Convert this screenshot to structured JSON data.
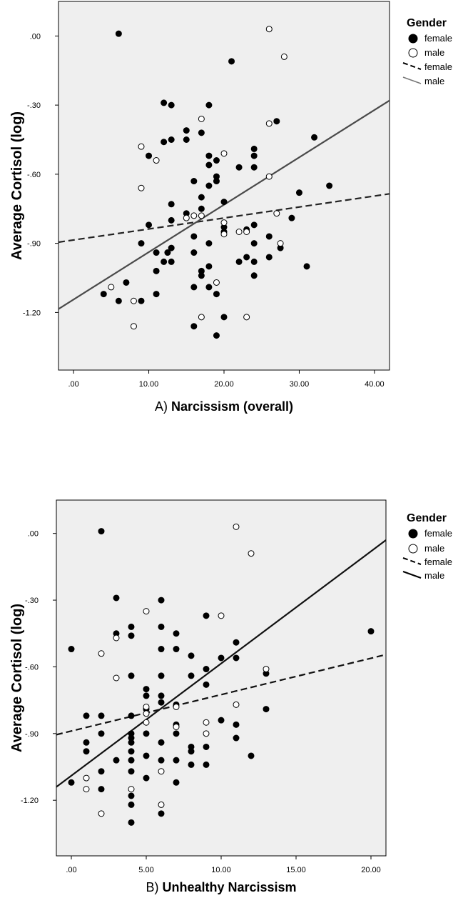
{
  "chart_data": [
    {
      "type": "scatter",
      "panel": "A)",
      "xlabel": "Narcissism (overall)",
      "ylabel": "Average Cortisol (log)",
      "xlim": [
        -2,
        42
      ],
      "ylim": [
        -1.45,
        0.15
      ],
      "xticks": [
        0,
        10,
        20,
        30,
        40
      ],
      "xtick_labels": [
        ".00",
        "10.00",
        "20.00",
        "30.00",
        "40.00"
      ],
      "yticks": [
        0,
        -0.3,
        -0.6,
        -0.9,
        -1.2
      ],
      "ytick_labels": [
        ".00",
        "-.30",
        "-.60",
        "-.90",
        "-1.20"
      ],
      "grid": false,
      "background": "#efefef",
      "legend": {
        "title": "Gender",
        "placement": "right",
        "items": [
          {
            "label": "female",
            "marker": "filled-circle"
          },
          {
            "label": "male",
            "marker": "open-circle"
          },
          {
            "label": "female",
            "line": "dashed"
          },
          {
            "label": "male",
            "line": "solid"
          }
        ]
      },
      "fit_lines": [
        {
          "group": "female",
          "style": "dashed",
          "color": "#222222",
          "x": [
            -2,
            42
          ],
          "y": [
            -0.895,
            -0.685
          ]
        },
        {
          "group": "male",
          "style": "solid",
          "color": "#4a4a4a",
          "x": [
            -2,
            42
          ],
          "y": [
            -1.185,
            -0.28
          ]
        }
      ],
      "series": [
        {
          "name": "female",
          "marker": "filled",
          "points": [
            [
              6,
              0.01
            ],
            [
              21,
              -0.11
            ],
            [
              12,
              -0.29
            ],
            [
              13,
              -0.3
            ],
            [
              18,
              -0.3
            ],
            [
              27,
              -0.37
            ],
            [
              32,
              -0.44
            ],
            [
              15,
              -0.41
            ],
            [
              17,
              -0.42
            ],
            [
              13,
              -0.45
            ],
            [
              12,
              -0.46
            ],
            [
              15,
              -0.45
            ],
            [
              24,
              -0.49
            ],
            [
              10,
              -0.52
            ],
            [
              18,
              -0.52
            ],
            [
              24,
              -0.52
            ],
            [
              19,
              -0.54
            ],
            [
              18,
              -0.56
            ],
            [
              22,
              -0.57
            ],
            [
              24,
              -0.57
            ],
            [
              19,
              -0.61
            ],
            [
              16,
              -0.63
            ],
            [
              19,
              -0.63
            ],
            [
              18,
              -0.65
            ],
            [
              34,
              -0.65
            ],
            [
              30,
              -0.68
            ],
            [
              17,
              -0.7
            ],
            [
              20,
              -0.72
            ],
            [
              13,
              -0.73
            ],
            [
              17,
              -0.75
            ],
            [
              15,
              -0.77
            ],
            [
              29,
              -0.79
            ],
            [
              13,
              -0.8
            ],
            [
              10,
              -0.82
            ],
            [
              24,
              -0.82
            ],
            [
              20,
              -0.83
            ],
            [
              23,
              -0.84
            ],
            [
              20,
              -0.85
            ],
            [
              26,
              -0.87
            ],
            [
              16,
              -0.87
            ],
            [
              9,
              -0.9
            ],
            [
              18,
              -0.9
            ],
            [
              24,
              -0.9
            ],
            [
              13,
              -0.92
            ],
            [
              27.5,
              -0.92
            ],
            [
              11,
              -0.94
            ],
            [
              12.5,
              -0.94
            ],
            [
              16,
              -0.94
            ],
            [
              23,
              -0.96
            ],
            [
              26,
              -0.96
            ],
            [
              12,
              -0.98
            ],
            [
              13,
              -0.98
            ],
            [
              22,
              -0.98
            ],
            [
              24,
              -0.98
            ],
            [
              18,
              -1.0
            ],
            [
              31,
              -1.0
            ],
            [
              11,
              -1.02
            ],
            [
              17,
              -1.02
            ],
            [
              17,
              -1.04
            ],
            [
              24,
              -1.04
            ],
            [
              7,
              -1.07
            ],
            [
              16,
              -1.09
            ],
            [
              18,
              -1.09
            ],
            [
              4,
              -1.12
            ],
            [
              11,
              -1.12
            ],
            [
              19,
              -1.12
            ],
            [
              6,
              -1.15
            ],
            [
              9,
              -1.15
            ],
            [
              20,
              -1.22
            ],
            [
              16,
              -1.26
            ],
            [
              19,
              -1.3
            ]
          ]
        },
        {
          "name": "male",
          "marker": "open",
          "points": [
            [
              26,
              0.03
            ],
            [
              28,
              -0.09
            ],
            [
              17,
              -0.36
            ],
            [
              26,
              -0.38
            ],
            [
              9,
              -0.48
            ],
            [
              20,
              -0.51
            ],
            [
              11,
              -0.54
            ],
            [
              26,
              -0.61
            ],
            [
              9,
              -0.66
            ],
            [
              27,
              -0.77
            ],
            [
              16,
              -0.78
            ],
            [
              17,
              -0.78
            ],
            [
              15,
              -0.79
            ],
            [
              20,
              -0.81
            ],
            [
              22,
              -0.85
            ],
            [
              23,
              -0.85
            ],
            [
              20,
              -0.86
            ],
            [
              27.5,
              -0.9
            ],
            [
              19,
              -1.07
            ],
            [
              5,
              -1.09
            ],
            [
              8,
              -1.15
            ],
            [
              17,
              -1.22
            ],
            [
              23,
              -1.22
            ],
            [
              8,
              -1.26
            ]
          ]
        }
      ]
    },
    {
      "type": "scatter",
      "panel": "B)",
      "xlabel": "Unhealthy Narcissism",
      "ylabel": "Average Cortisol (log)",
      "xlim": [
        -1,
        21
      ],
      "ylim": [
        -1.45,
        0.15
      ],
      "xticks": [
        0,
        5,
        10,
        15,
        20
      ],
      "xtick_labels": [
        ".00",
        "5.00",
        "10.00",
        "15.00",
        "20.00"
      ],
      "yticks": [
        0,
        -0.3,
        -0.6,
        -0.9,
        -1.2
      ],
      "ytick_labels": [
        ".00",
        "-.30",
        "-.60",
        "-.90",
        "-1.20"
      ],
      "grid": false,
      "background": "#efefef",
      "legend": {
        "title": "Gender",
        "placement": "right",
        "items": [
          {
            "label": "female",
            "marker": "filled-circle"
          },
          {
            "label": "male",
            "marker": "open-circle"
          },
          {
            "label": "female",
            "line": "dashed"
          },
          {
            "label": "male",
            "line": "solid"
          }
        ]
      },
      "fit_lines": [
        {
          "group": "female",
          "style": "dashed",
          "color": "#111111",
          "x": [
            -1,
            21
          ],
          "y": [
            -0.905,
            -0.545
          ]
        },
        {
          "group": "male",
          "style": "solid",
          "color": "#111111",
          "x": [
            -1,
            21
          ],
          "y": [
            -1.14,
            -0.03
          ]
        }
      ],
      "series": [
        {
          "name": "female",
          "marker": "filled",
          "points": [
            [
              2,
              0.01
            ],
            [
              3,
              -0.29
            ],
            [
              6,
              -0.3
            ],
            [
              9,
              -0.37
            ],
            [
              4,
              -0.42
            ],
            [
              6,
              -0.42
            ],
            [
              20,
              -0.44
            ],
            [
              3,
              -0.45
            ],
            [
              7,
              -0.45
            ],
            [
              4,
              -0.46
            ],
            [
              11,
              -0.49
            ],
            [
              0,
              -0.52
            ],
            [
              6,
              -0.52
            ],
            [
              7,
              -0.52
            ],
            [
              8,
              -0.55
            ],
            [
              10,
              -0.56
            ],
            [
              11,
              -0.56
            ],
            [
              9,
              -0.61
            ],
            [
              13,
              -0.63
            ],
            [
              4,
              -0.64
            ],
            [
              6,
              -0.64
            ],
            [
              8,
              -0.64
            ],
            [
              9,
              -0.68
            ],
            [
              5,
              -0.7
            ],
            [
              5,
              -0.73
            ],
            [
              6,
              -0.73
            ],
            [
              6,
              -0.76
            ],
            [
              7,
              -0.77
            ],
            [
              5,
              -0.79
            ],
            [
              13,
              -0.79
            ],
            [
              1,
              -0.82
            ],
            [
              2,
              -0.82
            ],
            [
              4,
              -0.82
            ],
            [
              10,
              -0.84
            ],
            [
              7,
              -0.86
            ],
            [
              11,
              -0.86
            ],
            [
              2,
              -0.9
            ],
            [
              4,
              -0.9
            ],
            [
              5,
              -0.9
            ],
            [
              7,
              -0.9
            ],
            [
              4,
              -0.92
            ],
            [
              11,
              -0.92
            ],
            [
              1,
              -0.94
            ],
            [
              4,
              -0.94
            ],
            [
              6,
              -0.94
            ],
            [
              8,
              -0.96
            ],
            [
              9,
              -0.96
            ],
            [
              1,
              -0.98
            ],
            [
              4,
              -0.98
            ],
            [
              8,
              -0.98
            ],
            [
              5,
              -1.0
            ],
            [
              12,
              -1.0
            ],
            [
              3,
              -1.02
            ],
            [
              4,
              -1.02
            ],
            [
              6,
              -1.02
            ],
            [
              7,
              -1.02
            ],
            [
              8,
              -1.04
            ],
            [
              9,
              -1.04
            ],
            [
              2,
              -1.07
            ],
            [
              4,
              -1.07
            ],
            [
              5,
              -1.1
            ],
            [
              0,
              -1.12
            ],
            [
              7,
              -1.12
            ],
            [
              2,
              -1.15
            ],
            [
              4,
              -1.18
            ],
            [
              4,
              -1.22
            ],
            [
              6,
              -1.26
            ],
            [
              4,
              -1.3
            ]
          ]
        },
        {
          "name": "male",
          "marker": "open",
          "points": [
            [
              11,
              0.03
            ],
            [
              12,
              -0.09
            ],
            [
              5,
              -0.35
            ],
            [
              10,
              -0.37
            ],
            [
              3,
              -0.47
            ],
            [
              2,
              -0.54
            ],
            [
              13,
              -0.61
            ],
            [
              3,
              -0.65
            ],
            [
              11,
              -0.77
            ],
            [
              5,
              -0.78
            ],
            [
              7,
              -0.78
            ],
            [
              5,
              -0.81
            ],
            [
              5,
              -0.85
            ],
            [
              9,
              -0.85
            ],
            [
              7,
              -0.87
            ],
            [
              9,
              -0.9
            ],
            [
              6,
              -1.07
            ],
            [
              1,
              -1.1
            ],
            [
              1,
              -1.15
            ],
            [
              4,
              -1.15
            ],
            [
              6,
              -1.22
            ],
            [
              2,
              -1.26
            ]
          ]
        }
      ]
    }
  ]
}
